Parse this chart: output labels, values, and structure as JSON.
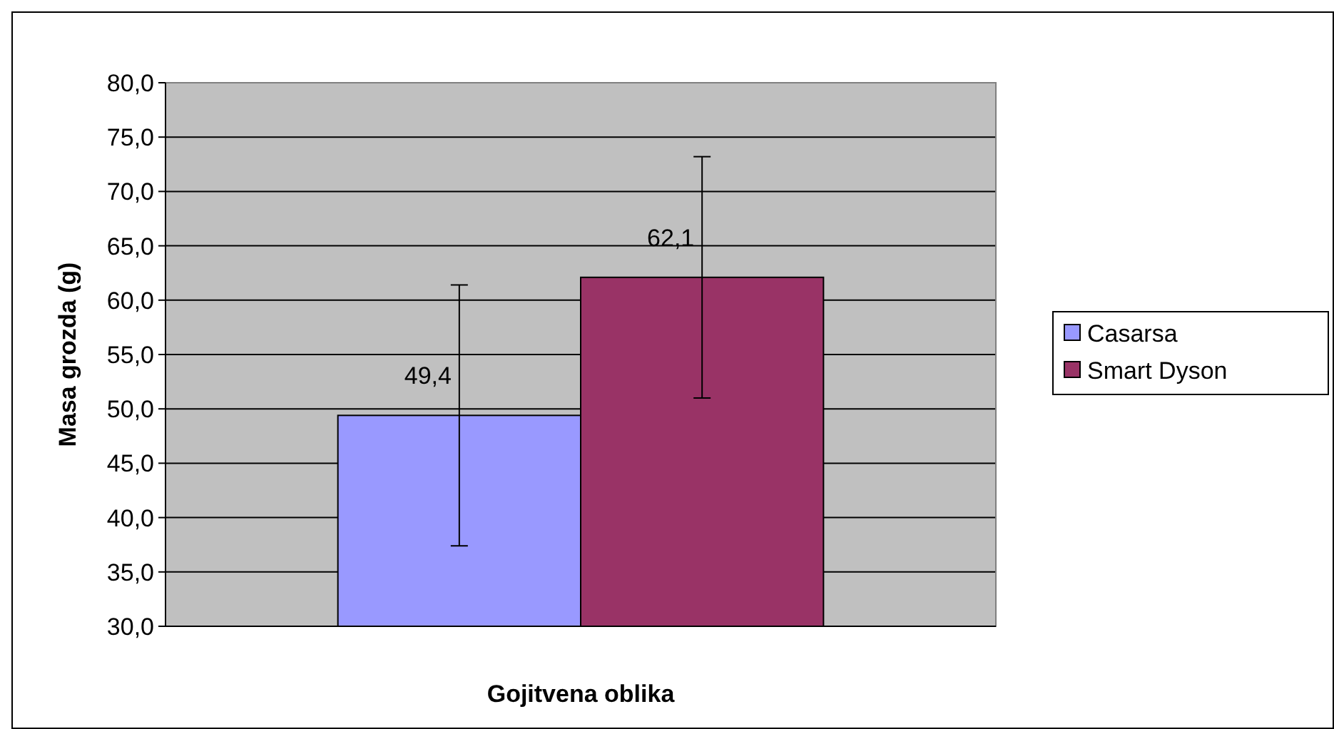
{
  "chart_data": {
    "type": "bar",
    "xlabel": "Gojitvena oblika",
    "ylabel": "Masa grozda (g)",
    "categories": [
      null
    ],
    "series": [
      {
        "name": "Casarsa",
        "color": "#9999ff",
        "values": [
          49.4
        ],
        "errors": [
          12
        ],
        "value_labels": [
          "49,4"
        ]
      },
      {
        "name": "Smart Dyson",
        "color": "#993366",
        "values": [
          62.1
        ],
        "errors": [
          11.1
        ],
        "value_labels": [
          "62,1"
        ]
      }
    ],
    "ylim": [
      30,
      80
    ],
    "yticks": [
      {
        "value": 30,
        "label": "30,0"
      },
      {
        "value": 35,
        "label": "35,0"
      },
      {
        "value": 40,
        "label": "40,0"
      },
      {
        "value": 45,
        "label": "45,0"
      },
      {
        "value": 50,
        "label": "50,0"
      },
      {
        "value": 55,
        "label": "55,0"
      },
      {
        "value": 60,
        "label": "60,0"
      },
      {
        "value": 65,
        "label": "65,0"
      },
      {
        "value": 70,
        "label": "70,0"
      },
      {
        "value": 75,
        "label": "75,0"
      },
      {
        "value": 80,
        "label": "80,0"
      }
    ],
    "grid": "y",
    "legend": "right"
  }
}
